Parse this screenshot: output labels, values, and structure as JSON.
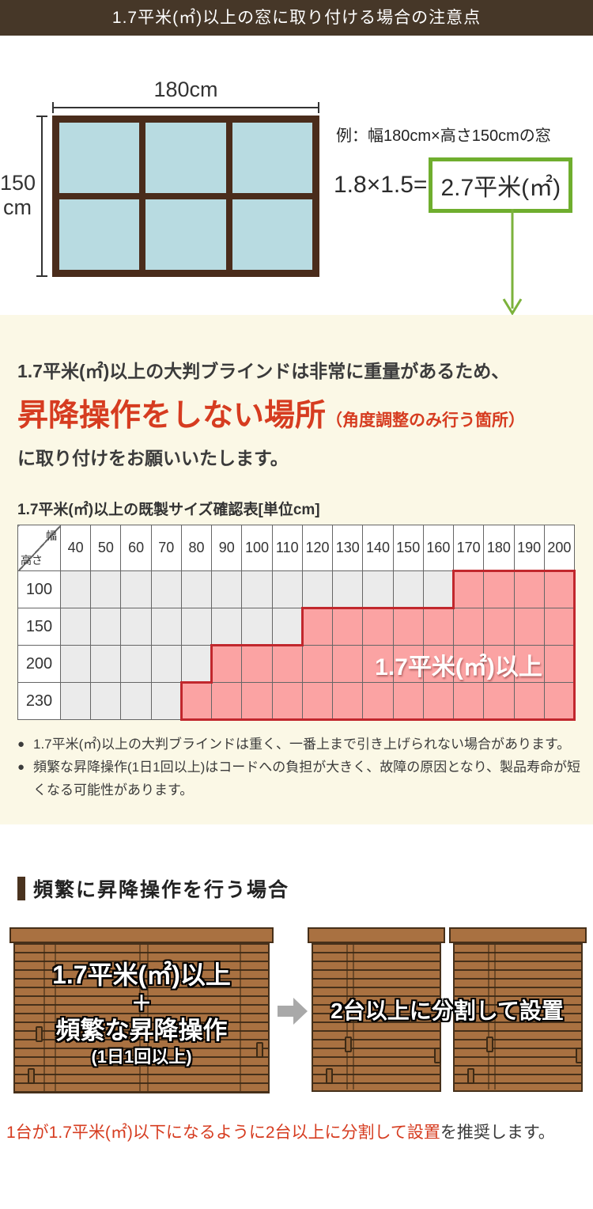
{
  "header": {
    "title": "1.7平米(㎡)以上の窓に取り付ける場合の注意点"
  },
  "diagram": {
    "width_label": "180cm",
    "height_value": "150",
    "height_unit": "cm",
    "example_caption": "例：幅180cm×高さ150cmの窓",
    "formula_left": "1.8×1.5=",
    "formula_result": "2.7平米(㎡)"
  },
  "notice": {
    "line1": "1.7平米(㎡)以上の大判ブラインドは非常に重量があるため、",
    "emphasis": "昇降操作をしない場所",
    "emphasis_note": "（角度調整のみ行う箇所）",
    "line2": "に取り付けをお願いいたします。"
  },
  "size_table": {
    "title": "1.7平米(㎡)以上の既製サイズ確認表[単位cm]",
    "corner_top": "幅",
    "corner_bottom": "高さ",
    "columns": [
      "40",
      "50",
      "60",
      "70",
      "80",
      "90",
      "100",
      "110",
      "120",
      "130",
      "140",
      "150",
      "160",
      "170",
      "180",
      "190",
      "200"
    ],
    "rows": [
      {
        "height": "100",
        "pink_from": "170"
      },
      {
        "height": "150",
        "pink_from": "120"
      },
      {
        "height": "200",
        "pink_from": "90"
      },
      {
        "height": "230",
        "pink_from": "80"
      }
    ],
    "overlay_label": "1.7平米(㎡)以上"
  },
  "notes_bullet": "●",
  "notes": [
    "1.7平米(㎡)以上の大判ブラインドは重く、一番上まで引き上げられない場合があります。",
    "頻繁な昇降操作(1日1回以上)はコードへの負担が大きく、故障の原因となり、製品寿命が短くなる可能性があります。"
  ],
  "section2": {
    "heading": "頻繁に昇降操作を行う場合",
    "left_blind_lines": [
      "1.7平米(㎡)以上",
      "＋",
      "頻繁な昇降操作",
      "(1日1回以上)"
    ],
    "right_blind_label": "2台以上に分割して設置"
  },
  "footer": {
    "red_text": "1台が1.7平米(㎡)以下になるように2台以上に分割して設置",
    "dark_text": "を推奨します。"
  },
  "colors": {
    "header_bg": "#463728",
    "accent_red": "#d63c20",
    "accent_green": "#6fae2e",
    "beige_bg": "#fbf8e6",
    "pink_cell": "#fba3a3",
    "pink_border": "#c1272d",
    "grey_cell": "#ebebeb",
    "window_frame": "#4a2c1b",
    "window_pane": "#b8dbe1",
    "blind_slat": "#a97141",
    "blind_dark": "#46301a"
  }
}
